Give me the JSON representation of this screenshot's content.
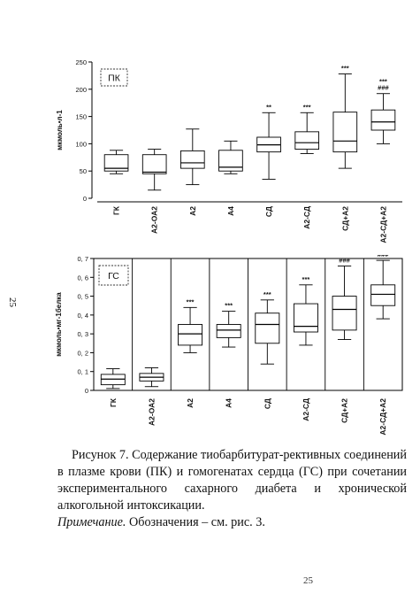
{
  "page_number": "25",
  "bottom_mark": "25",
  "caption": {
    "text": "Рисунок 7. Содержание тиобарбитурат-рективных соединений в плазме крови (ПК) и гомогенатах сердца (ГС) при сочетании экспериментального сахарного диабета и хронической алкогольной интоксикации.",
    "note_label": "Примечание.",
    "note_text": " Обозначения – см.  рис. 3."
  },
  "chart_data": [
    {
      "type": "box",
      "panel_label": "ПК",
      "ylabel": "мкмоль•л-1",
      "ylim": [
        0,
        250
      ],
      "yticks": [
        0,
        50,
        100,
        150,
        200,
        250
      ],
      "grid": false,
      "categories": [
        "ГК",
        "А2-ОА2",
        "А2",
        "А4",
        "СД",
        "А2-СД",
        "СД+А2",
        "А2-СД+А2"
      ],
      "boxes": [
        {
          "min": 45,
          "q1": 50,
          "median": 55,
          "q3": 80,
          "max": 88,
          "annotations": []
        },
        {
          "min": 15,
          "q1": 45,
          "median": 48,
          "q3": 80,
          "max": 90,
          "annotations": []
        },
        {
          "min": 25,
          "q1": 55,
          "median": 65,
          "q3": 87,
          "max": 127,
          "annotations": []
        },
        {
          "min": 45,
          "q1": 50,
          "median": 57,
          "q3": 88,
          "max": 105,
          "annotations": []
        },
        {
          "min": 35,
          "q1": 85,
          "median": 98,
          "q3": 112,
          "max": 157,
          "annotations": [
            "**"
          ]
        },
        {
          "min": 82,
          "q1": 90,
          "median": 102,
          "q3": 122,
          "max": 157,
          "annotations": [
            "***"
          ]
        },
        {
          "min": 55,
          "q1": 85,
          "median": 105,
          "q3": 158,
          "max": 228,
          "annotations": [
            "***"
          ]
        },
        {
          "min": 100,
          "q1": 125,
          "median": 140,
          "q3": 162,
          "max": 192,
          "annotations": [
            "***",
            "###"
          ]
        }
      ]
    },
    {
      "type": "box",
      "panel_label": "ГС",
      "ylabel": "мкмоль•мг-1белка",
      "ylim": [
        0,
        0.7
      ],
      "yticks": [
        "0",
        "0, 1",
        "0, 2",
        "0, 3",
        "0, 4",
        "0, 5",
        "0, 6",
        "0, 7"
      ],
      "grid": false,
      "categories": [
        "ГК",
        "А2-ОА2",
        "А2",
        "А4",
        "СД",
        "А2-СД",
        "СД+А2",
        "А2-СД+А2"
      ],
      "boxes": [
        {
          "min": 0.01,
          "q1": 0.03,
          "median": 0.06,
          "q3": 0.085,
          "max": 0.115,
          "annotations": []
        },
        {
          "min": 0.02,
          "q1": 0.05,
          "median": 0.07,
          "q3": 0.09,
          "max": 0.12,
          "annotations": []
        },
        {
          "min": 0.2,
          "q1": 0.24,
          "median": 0.3,
          "q3": 0.35,
          "max": 0.44,
          "annotations": [
            "***"
          ]
        },
        {
          "min": 0.23,
          "q1": 0.28,
          "median": 0.32,
          "q3": 0.35,
          "max": 0.42,
          "annotations": [
            "***"
          ]
        },
        {
          "min": 0.14,
          "q1": 0.25,
          "median": 0.35,
          "q3": 0.41,
          "max": 0.48,
          "annotations": [
            "***"
          ]
        },
        {
          "min": 0.24,
          "q1": 0.31,
          "median": 0.34,
          "q3": 0.46,
          "max": 0.56,
          "annotations": [
            "***"
          ]
        },
        {
          "min": 0.27,
          "q1": 0.32,
          "median": 0.43,
          "q3": 0.5,
          "max": 0.66,
          "annotations": [
            "***",
            "###"
          ]
        },
        {
          "min": 0.38,
          "q1": 0.45,
          "median": 0.51,
          "q3": 0.56,
          "max": 0.69,
          "annotations": [
            "***",
            "###"
          ]
        }
      ]
    }
  ]
}
